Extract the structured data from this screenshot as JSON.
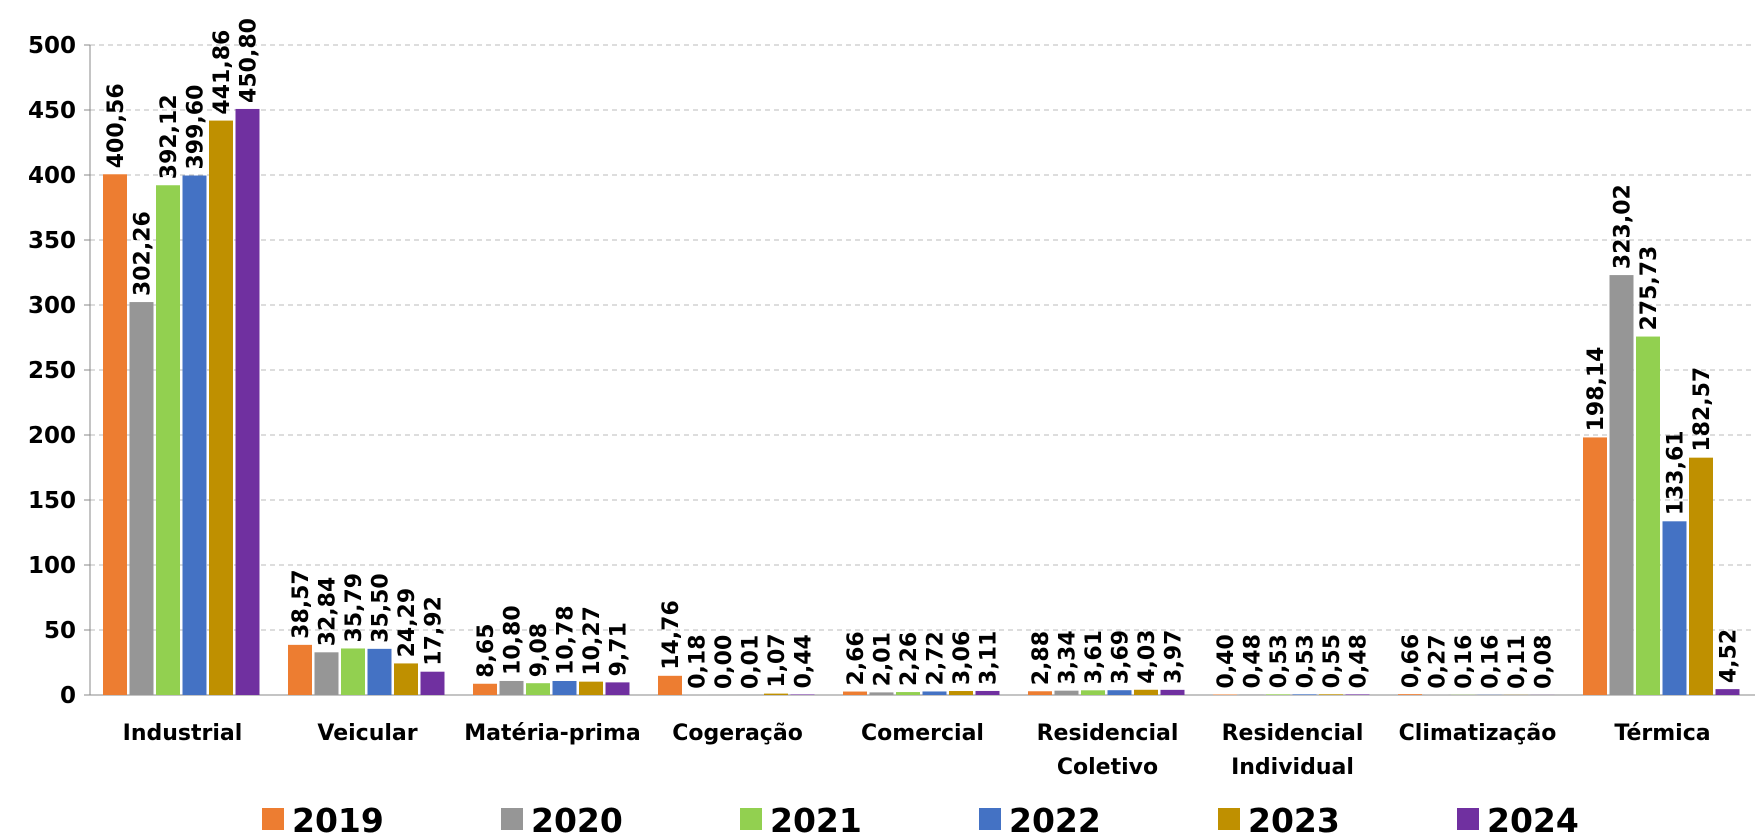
{
  "chart_data": {
    "type": "bar",
    "categories": [
      "Industrial",
      "Veicular",
      "Matéria-prima",
      "Cogeração",
      "Comercial",
      "Residencial Coletivo",
      "Residencial Individual",
      "Climatização",
      "Térmica"
    ],
    "series": [
      {
        "name": "2019",
        "color": "#ed7d31",
        "values": [
          400.56,
          38.57,
          8.65,
          14.76,
          2.66,
          2.88,
          0.4,
          0.66,
          198.14
        ],
        "value_labels": [
          "400,56",
          "38,57",
          "8,65",
          "14,76",
          "2,66",
          "2,88",
          "0,40",
          "0,66",
          "198,14"
        ]
      },
      {
        "name": "2020",
        "color": "#969696",
        "values": [
          302.26,
          32.84,
          10.8,
          0.18,
          2.01,
          3.34,
          0.48,
          0.27,
          323.02
        ],
        "value_labels": [
          "302,26",
          "32,84",
          "10,80",
          "0,18",
          "2,01",
          "3,34",
          "0,48",
          "0,27",
          "323,02"
        ]
      },
      {
        "name": "2021",
        "color": "#92d050",
        "values": [
          392.12,
          35.79,
          9.08,
          0.0,
          2.26,
          3.61,
          0.53,
          0.16,
          275.73
        ],
        "value_labels": [
          "392,12",
          "35,79",
          "9,08",
          "0,00",
          "2,26",
          "3,61",
          "0,53",
          "0,16",
          "275,73"
        ]
      },
      {
        "name": "2022",
        "color": "#4472c4",
        "values": [
          399.6,
          35.5,
          10.78,
          0.01,
          2.72,
          3.69,
          0.53,
          0.16,
          133.61
        ],
        "value_labels": [
          "399,60",
          "35,50",
          "10,78",
          "0,01",
          "2,72",
          "3,69",
          "0,53",
          "0,16",
          "133,61"
        ]
      },
      {
        "name": "2023",
        "color": "#bf9000",
        "values": [
          441.86,
          24.29,
          10.27,
          1.07,
          3.06,
          4.03,
          0.55,
          0.11,
          182.57
        ],
        "value_labels": [
          "441,86",
          "24,29",
          "10,27",
          "1,07",
          "3,06",
          "4,03",
          "0,55",
          "0,11",
          "182,57"
        ]
      },
      {
        "name": "2024",
        "color": "#7030a0",
        "values": [
          450.8,
          17.92,
          9.71,
          0.44,
          3.11,
          3.97,
          0.48,
          0.08,
          4.52
        ],
        "value_labels": [
          "450,80",
          "17,92",
          "9,71",
          "0,44",
          "3,11",
          "3,97",
          "0,48",
          "0,08",
          "4,52"
        ]
      }
    ],
    "ylim": [
      0,
      500
    ],
    "yticks": [
      0,
      50,
      100,
      150,
      200,
      250,
      300,
      350,
      400,
      450,
      500
    ],
    "grid": true,
    "legend": "bottom"
  }
}
